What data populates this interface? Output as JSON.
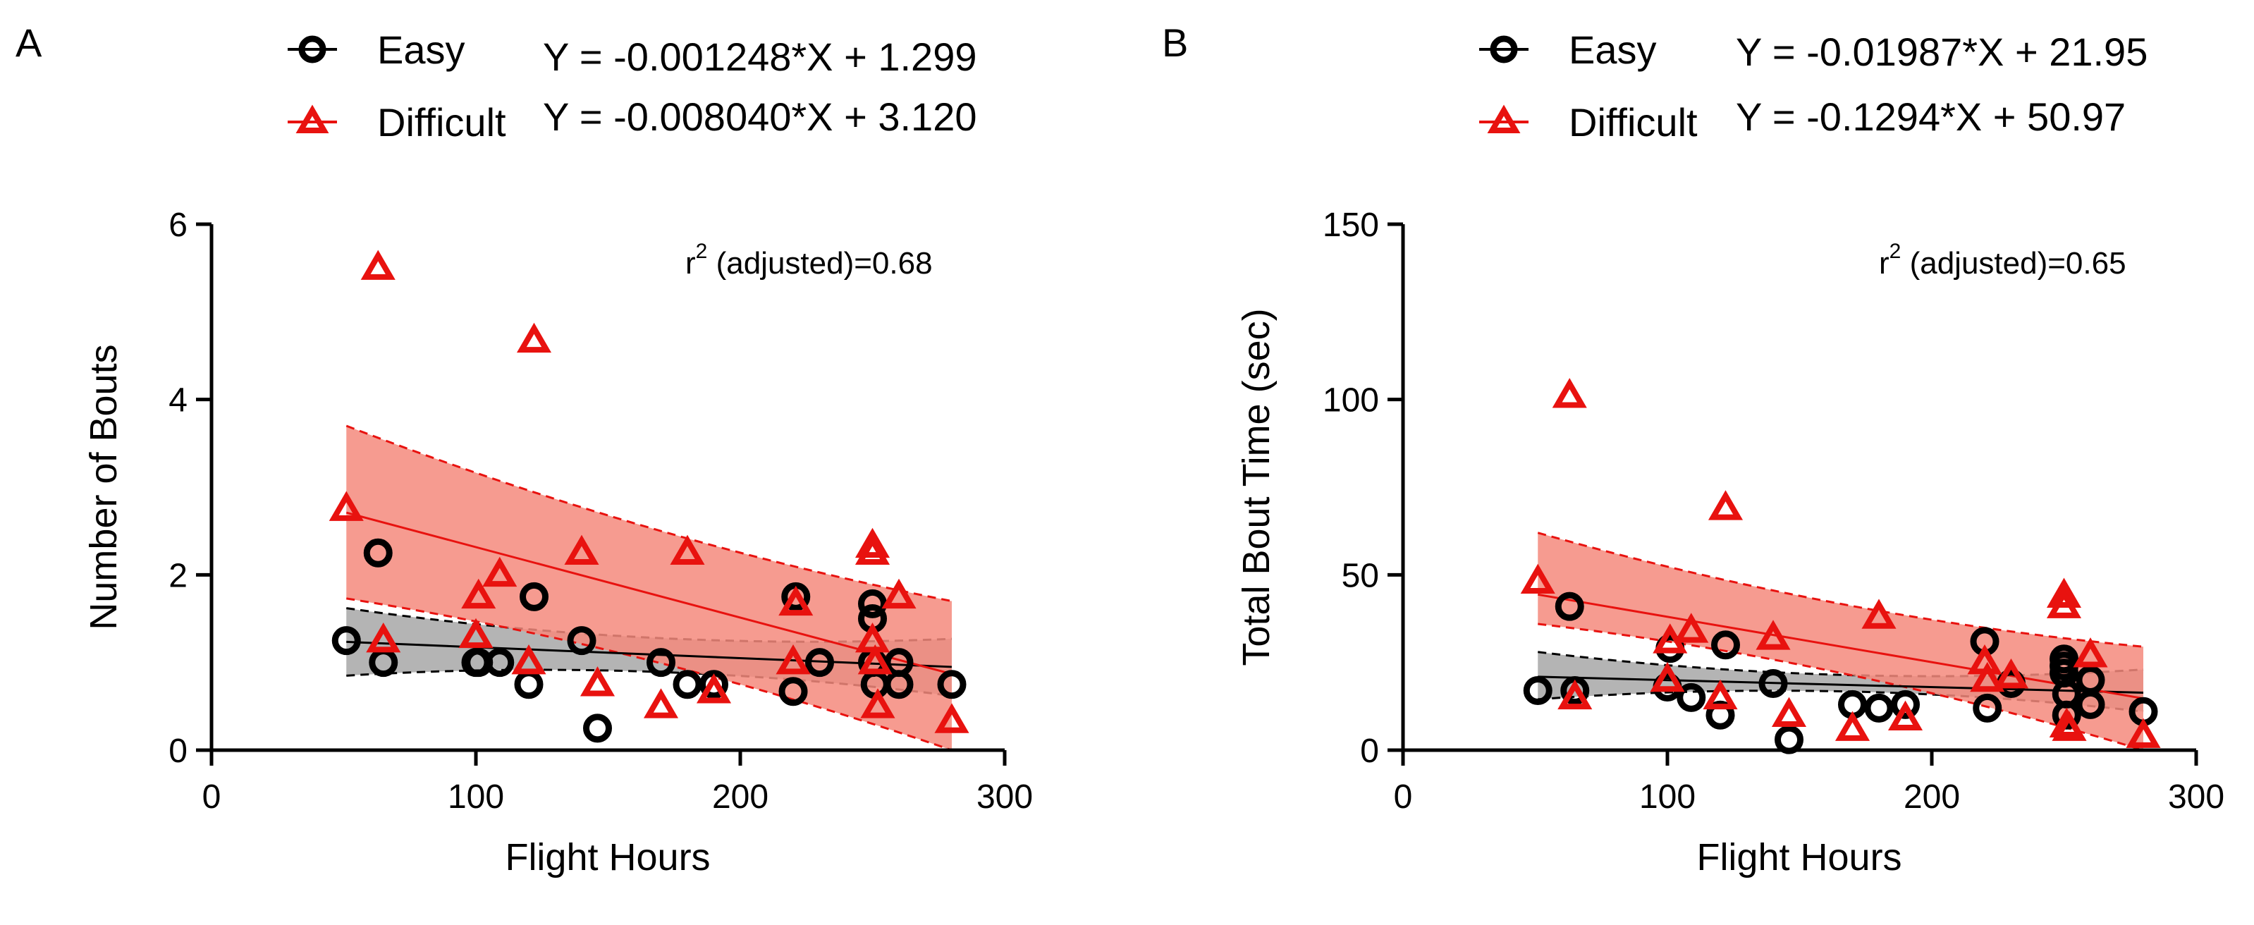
{
  "chart_data": [
    {
      "type": "scatter",
      "panel_label": "A",
      "xlabel": "Flight Hours",
      "ylabel": "Number of Bouts",
      "xlim": [
        0,
        300
      ],
      "ylim": [
        0,
        6
      ],
      "xticks": [
        "0",
        "100",
        "200",
        "300"
      ],
      "yticks": [
        "0",
        "2",
        "4",
        "6"
      ],
      "annotation_prefix": "r",
      "annotation_sup": "2",
      "annotation_suffix": " (adjusted)=0.68",
      "series": [
        {
          "name": "Easy",
          "marker": "circle",
          "color": "#000000",
          "band_color": "#b4b4b4",
          "equation": "Y = -0.001248*X + 1.299",
          "slope": -0.001248,
          "intercept": 1.299,
          "ci_upper": [
            1.62,
            1.27
          ],
          "ci_lower": [
            0.85,
            0.62
          ],
          "x": [
            51,
            63,
            65,
            100,
            101,
            109,
            120,
            122,
            140,
            146,
            170,
            180,
            190,
            220,
            221,
            230,
            250,
            250,
            250,
            251,
            260,
            260,
            280
          ],
          "y": [
            1.25,
            2.25,
            1.0,
            1.0,
            1.0,
            1.0,
            0.75,
            1.75,
            1.25,
            0.25,
            1.0,
            0.75,
            0.75,
            0.67,
            1.75,
            1.0,
            1.67,
            1.5,
            1.0,
            0.75,
            1.0,
            0.75,
            0.75
          ]
        },
        {
          "name": "Difficult",
          "marker": "triangle",
          "color": "#e8120f",
          "band_color": "#f48a7c",
          "equation": "Y = -0.008040*X + 3.120",
          "slope": -0.00804,
          "intercept": 3.12,
          "ci_upper": [
            3.7,
            1.7
          ],
          "ci_lower": [
            1.73,
            0.0
          ],
          "x": [
            51,
            63,
            65,
            100,
            101,
            109,
            120,
            122,
            140,
            146,
            170,
            180,
            190,
            220,
            221,
            250,
            250,
            250,
            251,
            252,
            260,
            280
          ],
          "y": [
            2.75,
            5.5,
            1.25,
            1.3,
            1.75,
            2.0,
            1.0,
            4.67,
            2.25,
            0.75,
            0.5,
            2.25,
            0.67,
            1.0,
            1.67,
            2.33,
            2.25,
            1.25,
            1.0,
            0.5,
            1.75,
            0.33
          ]
        }
      ]
    },
    {
      "type": "scatter",
      "panel_label": "B",
      "xlabel": "Flight Hours",
      "ylabel": "Total Bout Time (sec)",
      "xlim": [
        0,
        300
      ],
      "ylim": [
        0,
        150
      ],
      "xticks": [
        "0",
        "100",
        "200",
        "300"
      ],
      "yticks": [
        "0",
        "50",
        "100",
        "150"
      ],
      "annotation_prefix": "r",
      "annotation_sup": "2",
      "annotation_suffix": " (adjusted)=0.65",
      "series": [
        {
          "name": "Easy",
          "marker": "circle",
          "color": "#000000",
          "band_color": "#b4b4b4",
          "equation": "Y = -0.01987*X + 21.95",
          "slope": -0.01987,
          "intercept": 21.95,
          "ci_upper": [
            28.0,
            23.0
          ],
          "ci_lower": [
            14.5,
            11.0
          ],
          "x": [
            51,
            63,
            65,
            100,
            101,
            109,
            120,
            122,
            140,
            146,
            170,
            180,
            190,
            220,
            221,
            230,
            250,
            250,
            250,
            251,
            251,
            260,
            260,
            280
          ],
          "y": [
            17,
            41,
            17,
            18,
            29,
            15,
            10,
            30,
            19,
            3,
            13,
            12,
            13,
            31,
            12,
            19,
            26,
            24,
            22,
            16,
            10,
            20,
            13,
            11
          ]
        },
        {
          "name": "Difficult",
          "marker": "triangle",
          "color": "#e8120f",
          "band_color": "#f48a7c",
          "equation": "Y = -0.1294*X + 50.97",
          "slope": -0.1294,
          "intercept": 50.97,
          "ci_upper": [
            62.0,
            29.5
          ],
          "ci_lower": [
            36.0,
            0.0
          ],
          "x": [
            51,
            63,
            65,
            100,
            101,
            109,
            120,
            122,
            140,
            146,
            170,
            180,
            190,
            220,
            221,
            230,
            250,
            250,
            251,
            252,
            260,
            280
          ],
          "y": [
            48,
            101,
            15,
            20,
            31,
            34,
            15,
            69,
            32,
            10,
            6,
            38,
            9,
            25,
            20,
            21,
            44,
            41,
            7,
            6,
            27,
            4
          ]
        }
      ]
    }
  ]
}
